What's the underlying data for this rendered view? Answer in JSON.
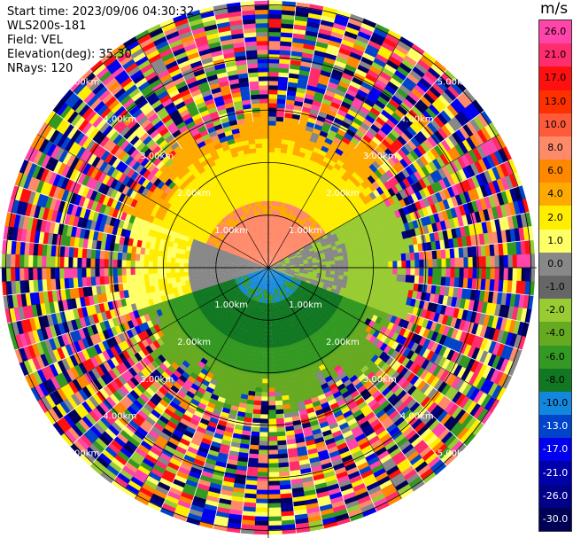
{
  "header": {
    "start_time": "Start time: 2023/09/06 04:30:32",
    "instrument": "WLS200s-181",
    "field": "Field: VEL",
    "elevation": "Elevation(deg): 35.30",
    "nrays": "NRays: 120"
  },
  "colorbar": {
    "unit": "m/s",
    "levels": [
      "26.0",
      "21.0",
      "17.0",
      "13.0",
      "10.0",
      "8.0",
      "6.0",
      "4.0",
      "2.0",
      "1.0",
      "0.0",
      "-1.0",
      "-2.0",
      "-4.0",
      "-6.0",
      "-8.0",
      "-10.0",
      "-13.0",
      "-17.0",
      "-21.0",
      "-26.0",
      "-30.0"
    ],
    "colors": [
      "#ff44aa",
      "#ff2c6e",
      "#ff1010",
      "#ff3000",
      "#ff5a3a",
      "#ff8a6a",
      "#ff8800",
      "#ffaa00",
      "#ffee00",
      "#ffff66",
      "#888888",
      "#666666",
      "#99cc33",
      "#66aa22",
      "#339922",
      "#117722",
      "#1188dd",
      "#0044cc",
      "#0000ee",
      "#0000aa",
      "#000088",
      "#000055"
    ]
  },
  "rings": {
    "labels": [
      "1.00km",
      "2.00km",
      "3.00km",
      "4.00km",
      "5.00km"
    ]
  },
  "ppi_field": {
    "type": "ppi",
    "nrays": 120,
    "outer_range_km": 5.0
  }
}
